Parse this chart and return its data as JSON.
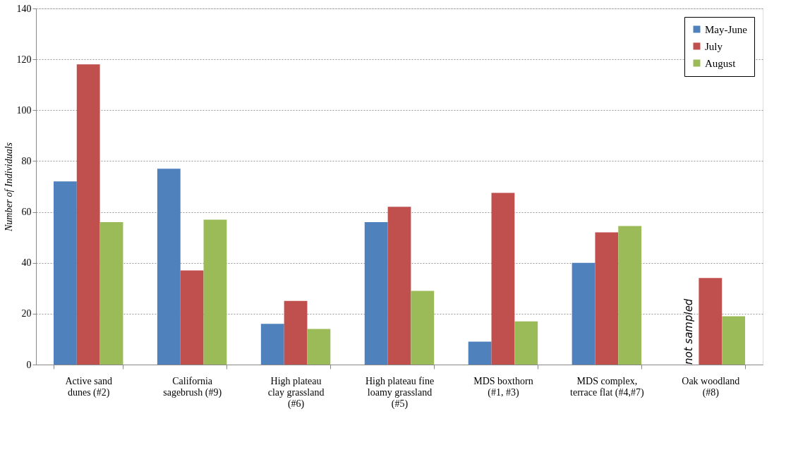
{
  "chart_data": {
    "type": "bar",
    "ylabel": "Number of Individuals",
    "categories": [
      "Active sand\ndunes (#2)",
      "California\nsagebrush (#9)",
      "High plateau\nclay grassland\n(#6)",
      "High plateau fine\nloamy grassland\n(#5)",
      "MDS boxthorn\n(#1, #3)",
      "MDS complex,\nterrace flat (#4,#7)",
      "Oak woodland\n(#8)"
    ],
    "series": [
      {
        "name": "May-June",
        "color": "#4f81bd",
        "values": [
          72,
          77,
          16,
          56,
          9,
          40,
          null
        ]
      },
      {
        "name": "July",
        "color": "#c0504d",
        "values": [
          118,
          37,
          25,
          62,
          67.5,
          52,
          34
        ]
      },
      {
        "name": "August",
        "color": "#9bbb59",
        "values": [
          56,
          57,
          14,
          29,
          17,
          54.5,
          19
        ]
      }
    ],
    "ylim": [
      0,
      140
    ],
    "yticks": [
      0,
      20,
      40,
      60,
      80,
      100,
      120,
      140
    ],
    "grid": "y",
    "legend": "top right",
    "annotations": [
      {
        "text": "not sampled",
        "x": "Oak woodland\n(#8)",
        "y": 0
      }
    ]
  }
}
